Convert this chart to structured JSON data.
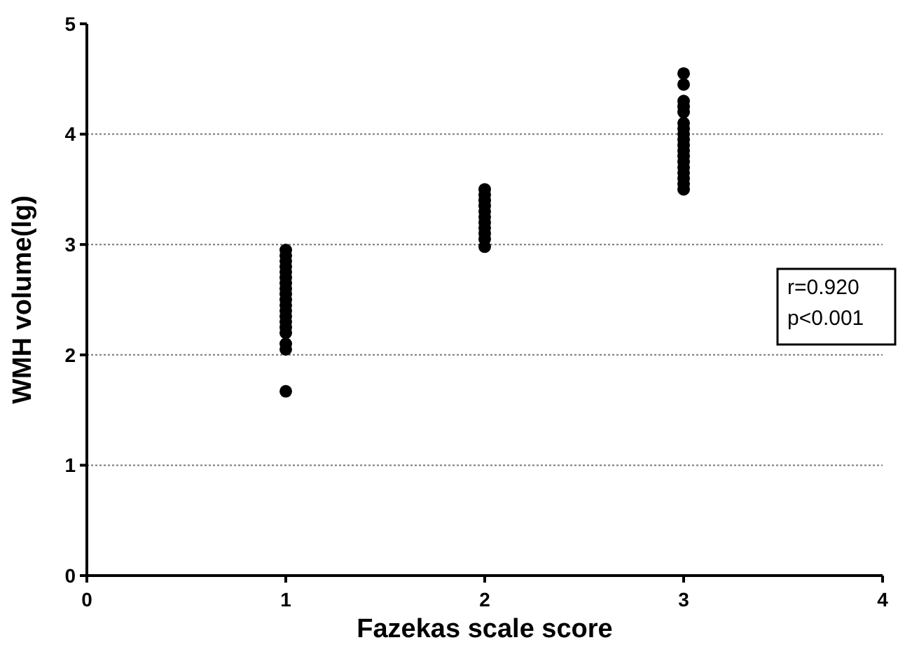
{
  "chart_data": {
    "type": "scatter",
    "xlabel": "Fazekas scale score",
    "ylabel": "WMH volume(lg)",
    "x": [
      1,
      1,
      1,
      1,
      1,
      1,
      1,
      1,
      1,
      1,
      1,
      1,
      1,
      1,
      1,
      1,
      1,
      1,
      1,
      2,
      2,
      2,
      2,
      2,
      2,
      2,
      2,
      2,
      2,
      2,
      3,
      3,
      3,
      3,
      3,
      3,
      3,
      3,
      3,
      3,
      3,
      3,
      3,
      3,
      3,
      3,
      3,
      3
    ],
    "values": [
      2.95,
      2.9,
      2.85,
      2.8,
      2.75,
      2.7,
      2.65,
      2.6,
      2.55,
      2.5,
      2.45,
      2.4,
      2.35,
      2.3,
      2.25,
      2.2,
      2.1,
      2.05,
      1.67,
      3.5,
      3.45,
      3.4,
      3.35,
      3.3,
      3.25,
      3.2,
      3.15,
      3.1,
      3.05,
      2.98,
      4.55,
      4.45,
      4.3,
      4.25,
      4.2,
      4.1,
      4.05,
      4.0,
      3.95,
      3.9,
      3.85,
      3.8,
      3.75,
      3.7,
      3.65,
      3.6,
      3.55,
      3.5
    ],
    "color": "#000000",
    "marker": "circle",
    "xlim": [
      0,
      4
    ],
    "xticks": [
      0,
      1,
      2,
      3,
      4
    ],
    "ylim": [
      0,
      5
    ],
    "yticks": [
      0,
      1,
      2,
      3,
      4,
      5
    ],
    "grid": "y",
    "annotations": [
      "r=0.920",
      "p<0.001"
    ]
  }
}
